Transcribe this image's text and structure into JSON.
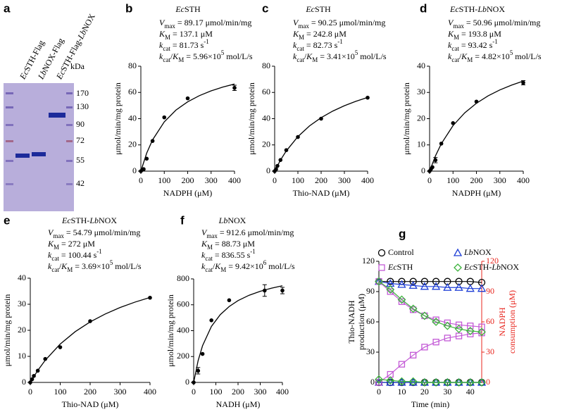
{
  "gel": {
    "panel": "a",
    "lanes": [
      [
        {
          "t": "Ec",
          "s": "i"
        },
        {
          "t": "STH-Flag"
        }
      ],
      [
        {
          "t": "Lb",
          "s": "i"
        },
        {
          "t": "NOX-Flag"
        }
      ],
      [
        {
          "t": "Ec",
          "s": "i"
        },
        {
          "t": "STH-Flag-"
        },
        {
          "t": "Lb",
          "s": "i"
        },
        {
          "t": "NOX"
        }
      ]
    ],
    "unit": "kDa",
    "markers": [
      170,
      130,
      90,
      72,
      55,
      42
    ]
  },
  "chart_data": [
    {
      "panel": "b",
      "type": "scatter",
      "title": [
        {
          "t": "Ec",
          "s": "i"
        },
        {
          "t": "STH"
        }
      ],
      "annotations": [
        [
          {
            "t": "V",
            "s": "i"
          },
          {
            "t": "max",
            "s": "sub"
          },
          {
            "t": " = 89.17 μmol/min/mg"
          }
        ],
        [
          {
            "t": "K",
            "s": "i"
          },
          {
            "t": "M",
            "s": "sub"
          },
          {
            "t": " = 137.1 μM"
          }
        ],
        [
          {
            "t": "k",
            "s": "i"
          },
          {
            "t": "cat",
            "s": "sub"
          },
          {
            "t": " = 81.73 s"
          },
          {
            "t": "-1",
            "s": "sup"
          }
        ],
        [
          {
            "t": "k",
            "s": "i"
          },
          {
            "t": "cat",
            "s": "sub"
          },
          {
            "t": "/"
          },
          {
            "t": "K",
            "s": "i"
          },
          {
            "t": "M",
            "s": "sub"
          },
          {
            "t": " = 5.96×10"
          },
          {
            "t": "5",
            "s": "sup"
          },
          {
            "t": " mol/L/s"
          }
        ]
      ],
      "xlabel": "NADPH (μM)",
      "ylabel": "μmol/min/mg protein",
      "xlim": [
        0,
        400
      ],
      "ylim": [
        0,
        80
      ],
      "xticks": [
        0,
        100,
        200,
        300,
        400
      ],
      "yticks": [
        0,
        20,
        40,
        60,
        80
      ],
      "series": [
        {
          "color": "#000000",
          "x": [
            0,
            6,
            12,
            25,
            50,
            100,
            200,
            400
          ],
          "values": [
            0,
            1,
            1.5,
            9.5,
            23,
            41,
            55.5,
            63.5
          ],
          "errors": [
            null,
            null,
            null,
            null,
            null,
            null,
            null,
            2
          ]
        },
        {
          "color": "#000000",
          "style": "line",
          "x": [
            0,
            25,
            50,
            100,
            150,
            200,
            250,
            300,
            350,
            400
          ],
          "values": [
            0,
            13.75,
            23.83,
            37.59,
            46.57,
            52.86,
            57.54,
            61.19,
            64.07,
            66.41
          ]
        }
      ]
    },
    {
      "panel": "c",
      "type": "scatter",
      "title": [
        {
          "t": "Ec",
          "s": "i"
        },
        {
          "t": "STH"
        }
      ],
      "annotations": [
        [
          {
            "t": "V",
            "s": "i"
          },
          {
            "t": "max",
            "s": "sub"
          },
          {
            "t": " = 90.25 μmol/min/mg"
          }
        ],
        [
          {
            "t": "K",
            "s": "i"
          },
          {
            "t": "M",
            "s": "sub"
          },
          {
            "t": " = 242.8 μM"
          }
        ],
        [
          {
            "t": "k",
            "s": "i"
          },
          {
            "t": "cat",
            "s": "sub"
          },
          {
            "t": " = 82.73 s"
          },
          {
            "t": "-1",
            "s": "sup"
          }
        ],
        [
          {
            "t": "k",
            "s": "i"
          },
          {
            "t": "cat",
            "s": "sub"
          },
          {
            "t": "/"
          },
          {
            "t": "K",
            "s": "i"
          },
          {
            "t": "M",
            "s": "sub"
          },
          {
            "t": " = 3.41×10"
          },
          {
            "t": "5",
            "s": "sup"
          },
          {
            "t": " mol/L/s"
          }
        ]
      ],
      "xlabel": "Thio-NAD (μM)",
      "ylabel": "μmol/min/mg protein",
      "xlim": [
        0,
        400
      ],
      "ylim": [
        0,
        80
      ],
      "xticks": [
        0,
        100,
        200,
        300,
        400
      ],
      "yticks": [
        0,
        20,
        40,
        60,
        80
      ],
      "series": [
        {
          "color": "#000000",
          "x": [
            0,
            6,
            12,
            25,
            50,
            100,
            200,
            400
          ],
          "values": [
            0,
            1.5,
            4,
            8.5,
            16,
            26,
            40,
            56
          ],
          "errors": [
            null,
            null,
            null,
            null,
            null,
            null,
            null,
            null
          ]
        },
        {
          "color": "#000000",
          "style": "line",
          "x": [
            0,
            25,
            50,
            100,
            150,
            200,
            250,
            300,
            350,
            400
          ],
          "values": [
            0,
            8.43,
            15.41,
            26.33,
            34.48,
            40.78,
            45.78,
            49.87,
            53.27,
            56.16
          ]
        }
      ]
    },
    {
      "panel": "d",
      "type": "scatter",
      "title": [
        {
          "t": "Ec",
          "s": "i"
        },
        {
          "t": "STH-"
        },
        {
          "t": "Lb",
          "s": "i"
        },
        {
          "t": "NOX"
        }
      ],
      "annotations": [
        [
          {
            "t": "V",
            "s": "i"
          },
          {
            "t": "max",
            "s": "sub"
          },
          {
            "t": " = 50.96 μmol/min/mg"
          }
        ],
        [
          {
            "t": "K",
            "s": "i"
          },
          {
            "t": "M",
            "s": "sub"
          },
          {
            "t": " = 193.8 μM"
          }
        ],
        [
          {
            "t": "k",
            "s": "i"
          },
          {
            "t": "cat",
            "s": "sub"
          },
          {
            "t": " = 93.42 s"
          },
          {
            "t": "-1",
            "s": "sup"
          }
        ],
        [
          {
            "t": "k",
            "s": "i"
          },
          {
            "t": "cat",
            "s": "sub"
          },
          {
            "t": "/"
          },
          {
            "t": "K",
            "s": "i"
          },
          {
            "t": "M",
            "s": "sub"
          },
          {
            "t": " = 4.82×10"
          },
          {
            "t": "5",
            "s": "sup"
          },
          {
            "t": " mol/L/s"
          }
        ]
      ],
      "xlabel": "NADPH (μM)",
      "ylabel": "μmol/min/mg protein",
      "xlim": [
        0,
        400
      ],
      "ylim": [
        0,
        40
      ],
      "xticks": [
        0,
        100,
        200,
        300,
        400
      ],
      "yticks": [
        0,
        10,
        20,
        30,
        40
      ],
      "series": [
        {
          "color": "#000000",
          "x": [
            0,
            6,
            12,
            25,
            50,
            100,
            200,
            400
          ],
          "values": [
            0,
            0.8,
            1.5,
            4.2,
            10.5,
            18.3,
            26.5,
            33.7
          ],
          "errors": [
            null,
            null,
            null,
            1,
            null,
            null,
            null,
            0.8
          ]
        },
        {
          "color": "#000000",
          "style": "line",
          "x": [
            0,
            25,
            50,
            100,
            150,
            200,
            250,
            300,
            350,
            400
          ],
          "values": [
            0,
            5.82,
            10.45,
            17.35,
            22.23,
            25.88,
            28.71,
            30.96,
            32.79,
            34.33
          ]
        }
      ]
    },
    {
      "panel": "e",
      "type": "scatter",
      "title": [
        {
          "t": "Ec",
          "s": "i"
        },
        {
          "t": "STH-"
        },
        {
          "t": "Lb",
          "s": "i"
        },
        {
          "t": "NOX"
        }
      ],
      "annotations": [
        [
          {
            "t": "V",
            "s": "i"
          },
          {
            "t": "max",
            "s": "sub"
          },
          {
            "t": " = 54.79 μmol/min/mg"
          }
        ],
        [
          {
            "t": "K",
            "s": "i"
          },
          {
            "t": "M",
            "s": "sub"
          },
          {
            "t": " = 272 μM"
          }
        ],
        [
          {
            "t": "k",
            "s": "i"
          },
          {
            "t": "cat",
            "s": "sub"
          },
          {
            "t": " = 100.44 s"
          },
          {
            "t": "-1",
            "s": "sup"
          }
        ],
        [
          {
            "t": "k",
            "s": "i"
          },
          {
            "t": "cat",
            "s": "sub"
          },
          {
            "t": "/"
          },
          {
            "t": "K",
            "s": "i"
          },
          {
            "t": "M",
            "s": "sub"
          },
          {
            "t": " = 3.69×10"
          },
          {
            "t": "5",
            "s": "sup"
          },
          {
            "t": " mol/L/s"
          }
        ]
      ],
      "xlabel": "Thio-NAD (μM)",
      "ylabel": "μmol/min/mg protein",
      "xlim": [
        0,
        400
      ],
      "ylim": [
        0,
        40
      ],
      "xticks": [
        0,
        100,
        200,
        300,
        400
      ],
      "yticks": [
        0,
        10,
        20,
        30,
        40
      ],
      "series": [
        {
          "color": "#000000",
          "x": [
            0,
            6,
            12,
            25,
            50,
            100,
            200,
            400
          ],
          "values": [
            0,
            1.2,
            2.5,
            4.5,
            9,
            13.5,
            23.5,
            32.5
          ],
          "errors": [
            null,
            null,
            null,
            null,
            null,
            null,
            null,
            null
          ]
        },
        {
          "color": "#000000",
          "style": "line",
          "x": [
            0,
            25,
            50,
            100,
            150,
            200,
            250,
            300,
            350,
            400
          ],
          "values": [
            0,
            4.61,
            8.51,
            14.73,
            19.47,
            23.22,
            26.24,
            28.74,
            30.83,
            32.61
          ]
        }
      ]
    },
    {
      "panel": "f",
      "type": "scatter",
      "title": [
        {
          "t": "Lb",
          "s": "i"
        },
        {
          "t": "NOX"
        }
      ],
      "annotations": [
        [
          {
            "t": "V",
            "s": "i"
          },
          {
            "t": "max",
            "s": "sub"
          },
          {
            "t": " = 912.6 μmol/min/mg"
          }
        ],
        [
          {
            "t": "K",
            "s": "i"
          },
          {
            "t": "M",
            "s": "sub"
          },
          {
            "t": " = 88.73 μM"
          }
        ],
        [
          {
            "t": "k",
            "s": "i"
          },
          {
            "t": "cat",
            "s": "sub"
          },
          {
            "t": " = 836.55 s"
          },
          {
            "t": "-1",
            "s": "sup"
          }
        ],
        [
          {
            "t": "k",
            "s": "i"
          },
          {
            "t": "cat",
            "s": "sub"
          },
          {
            "t": "/"
          },
          {
            "t": "K",
            "s": "i"
          },
          {
            "t": "M",
            "s": "sub"
          },
          {
            "t": " = 9.42×10"
          },
          {
            "t": "6",
            "s": "sup"
          },
          {
            "t": " mol/L/s"
          }
        ]
      ],
      "xlabel": "NADH (μM)",
      "ylabel": "μmol/min/mg protein",
      "xlim": [
        0,
        400
      ],
      "ylim": [
        0,
        800
      ],
      "xticks": [
        0,
        100,
        200,
        300,
        400
      ],
      "yticks": [
        0,
        200,
        400,
        600,
        800
      ],
      "series": [
        {
          "color": "#000000",
          "x": [
            0,
            20,
            40,
            80,
            160,
            320,
            400
          ],
          "values": [
            0,
            90,
            220,
            480,
            635,
            710,
            710
          ],
          "errors": [
            null,
            25,
            null,
            null,
            null,
            45,
            25
          ]
        },
        {
          "color": "#000000",
          "style": "line",
          "x": [
            0,
            20,
            40,
            80,
            120,
            160,
            200,
            250,
            300,
            350,
            400
          ],
          "values": [
            0,
            167.9,
            283.6,
            432.8,
            523.9,
            586.4,
            632.3,
            673.6,
            704.3,
            728,
            747
          ]
        }
      ]
    },
    {
      "panel": "g",
      "type": "line",
      "xlabel": "Time (min)",
      "ylabel": [
        "Thio-NADH",
        "production (μM)"
      ],
      "y2label": [
        "NADPH",
        "consumption (μM)"
      ],
      "y2color": "#e8241c",
      "xlim": [
        0,
        45
      ],
      "ylim": [
        0,
        120
      ],
      "y2lim": [
        0,
        120
      ],
      "xticks": [
        0,
        10,
        20,
        30,
        40
      ],
      "yticks": [
        0,
        30,
        60,
        90,
        120
      ],
      "y2ticks": [
        0,
        30,
        60,
        90,
        120
      ],
      "x": [
        0,
        5,
        10,
        15,
        20,
        25,
        30,
        35,
        40,
        45
      ],
      "series": [
        {
          "name": [
            {
              "t": "Control"
            }
          ],
          "color": "#000000",
          "marker": "circle",
          "values": [
            0,
            0,
            0,
            0,
            0,
            0,
            0,
            0,
            0,
            0
          ]
        },
        {
          "name": [
            {
              "t": "Lb",
              "s": "i"
            },
            {
              "t": "NOX"
            }
          ],
          "color": "#1f3fd6",
          "marker": "triangle",
          "values": [
            0,
            0,
            0,
            0,
            0,
            0,
            0,
            0,
            0,
            0
          ]
        },
        {
          "name": [
            {
              "t": "Ec",
              "s": "i"
            },
            {
              "t": "STH"
            }
          ],
          "color": "#c35ad6",
          "marker": "square",
          "values": [
            0,
            8,
            18,
            27,
            35,
            40,
            44,
            46,
            48,
            49
          ]
        },
        {
          "name": [
            {
              "t": "Ec",
              "s": "i"
            },
            {
              "t": "STH-"
            },
            {
              "t": "Lb",
              "s": "i"
            },
            {
              "t": "NOX"
            }
          ],
          "color": "#3bb33b",
          "marker": "diamond",
          "values": [
            3,
            2,
            1,
            1,
            0,
            0,
            0,
            0,
            0,
            0
          ]
        },
        {
          "color": "#000000",
          "marker": "circle",
          "axis": "y2",
          "values": [
            100,
            100,
            100,
            100,
            100,
            100,
            100,
            100,
            100,
            99
          ]
        },
        {
          "color": "#1f3fd6",
          "marker": "triangle",
          "axis": "y2",
          "values": [
            100,
            98,
            97,
            96,
            95,
            95,
            94,
            94,
            93,
            93
          ]
        },
        {
          "color": "#c35ad6",
          "marker": "square",
          "axis": "y2",
          "values": [
            100,
            90,
            80,
            72,
            66,
            62,
            59,
            57,
            56,
            55
          ]
        },
        {
          "color": "#3bb33b",
          "marker": "diamond",
          "axis": "y2",
          "values": [
            100,
            92,
            82,
            73,
            66,
            60,
            56,
            53,
            51,
            50
          ]
        }
      ]
    }
  ]
}
